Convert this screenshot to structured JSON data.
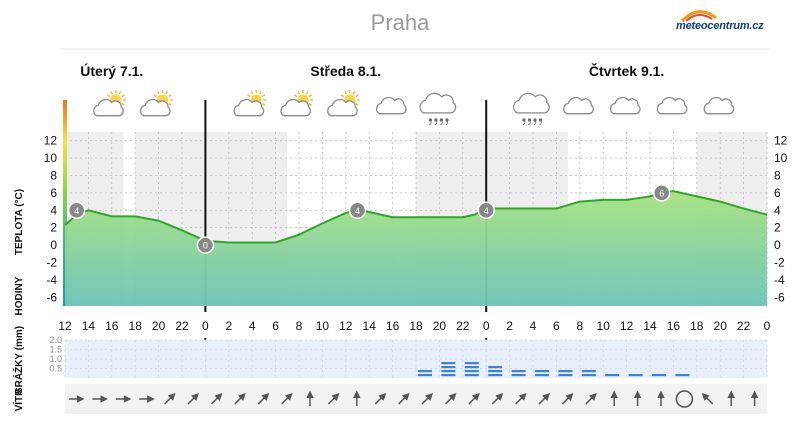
{
  "header": {
    "city": "Praha",
    "logo_text": "meteocentrum.cz"
  },
  "chart_data": {
    "type": "area",
    "days": [
      {
        "label": "Úterý 7.1.",
        "start_hour": 12
      },
      {
        "label": "Středa 8.1.",
        "start_hour": 24
      },
      {
        "label": "Čtvrtek 9.1.",
        "start_hour": 48
      }
    ],
    "x_ticks": [
      "12",
      "14",
      "16",
      "18",
      "20",
      "22",
      "0",
      "2",
      "4",
      "6",
      "8",
      "10",
      "12",
      "14",
      "16",
      "18",
      "20",
      "22",
      "0",
      "2",
      "4",
      "6",
      "8",
      "10",
      "12",
      "14",
      "16",
      "18",
      "20",
      "22",
      "0"
    ],
    "y_ticks": [
      12,
      10,
      8,
      6,
      4,
      2,
      0,
      -2,
      -4,
      -6
    ],
    "ylim": [
      -7,
      13
    ],
    "temp_axis_label": "TEPLOTA (°C)",
    "hours_axis_label": "HODINY",
    "temperature": {
      "hours": [
        12,
        13,
        14,
        16,
        18,
        20,
        22,
        24,
        26,
        28,
        30,
        32,
        34,
        36,
        37,
        38,
        40,
        42,
        44,
        46,
        47,
        48,
        50,
        52,
        54,
        56,
        58,
        60,
        62,
        63,
        64,
        66,
        68,
        70,
        72
      ],
      "values": [
        2.3,
        3.5,
        4,
        3.3,
        3.3,
        2.8,
        1.7,
        0.5,
        0.3,
        0.3,
        0.3,
        1.2,
        2.5,
        3.7,
        4,
        3.8,
        3.2,
        3.2,
        3.2,
        3.2,
        3.5,
        4.2,
        4.2,
        4.2,
        4.2,
        5,
        5.2,
        5.2,
        5.6,
        6,
        6.2,
        5.6,
        5,
        4.2,
        3.5
      ]
    },
    "temp_labels": [
      {
        "hour": 13,
        "value": 4,
        "text": "4"
      },
      {
        "hour": 24,
        "value": 0,
        "text": "0"
      },
      {
        "hour": 37,
        "value": 4,
        "text": "4"
      },
      {
        "hour": 48,
        "value": 4,
        "text": "4"
      },
      {
        "hour": 63,
        "value": 6,
        "text": "6"
      }
    ],
    "weather_icons": [
      {
        "hour": 16,
        "icon": "cloud-sun-icon"
      },
      {
        "hour": 20,
        "icon": "cloud-sun-icon"
      },
      {
        "hour": 28,
        "icon": "cloud-sun-icon"
      },
      {
        "hour": 32,
        "icon": "cloud-sun-icon"
      },
      {
        "hour": 36,
        "icon": "cloud-sun-icon"
      },
      {
        "hour": 40,
        "icon": "cloud-icon"
      },
      {
        "hour": 44,
        "icon": "rain-cloud-icon"
      },
      {
        "hour": 52,
        "icon": "rain-cloud-icon"
      },
      {
        "hour": 56,
        "icon": "cloud-icon"
      },
      {
        "hour": 60,
        "icon": "cloud-icon"
      },
      {
        "hour": 64,
        "icon": "cloud-icon"
      },
      {
        "hour": 68,
        "icon": "cloud-icon"
      }
    ],
    "precip_axis_label": "SRÁŽKY (mm)",
    "precip_ticks": [
      "2.0",
      "1.5",
      "1.0",
      "0.5"
    ],
    "precip_ylim": [
      0,
      2
    ],
    "precipitation": [
      {
        "hour": 42,
        "value": 0.5
      },
      {
        "hour": 44,
        "value": 1.0
      },
      {
        "hour": 46,
        "value": 1.0
      },
      {
        "hour": 48,
        "value": 0.7
      },
      {
        "hour": 50,
        "value": 0.5
      },
      {
        "hour": 52,
        "value": 0.5
      },
      {
        "hour": 54,
        "value": 0.5
      },
      {
        "hour": 56,
        "value": 0.5
      },
      {
        "hour": 58,
        "value": 0.3
      },
      {
        "hour": 60,
        "value": 0.3
      },
      {
        "hour": 62,
        "value": 0.3
      },
      {
        "hour": 64,
        "value": 0.3
      }
    ],
    "wind_axis_label": "VÍTR",
    "wind": [
      {
        "hour": 12,
        "dir": 90
      },
      {
        "hour": 14,
        "dir": 90
      },
      {
        "hour": 16,
        "dir": 90
      },
      {
        "hour": 18,
        "dir": 90
      },
      {
        "hour": 20,
        "dir": 45
      },
      {
        "hour": 22,
        "dir": 45
      },
      {
        "hour": 24,
        "dir": 45
      },
      {
        "hour": 26,
        "dir": 45
      },
      {
        "hour": 28,
        "dir": 45
      },
      {
        "hour": 30,
        "dir": 45
      },
      {
        "hour": 32,
        "dir": 0
      },
      {
        "hour": 34,
        "dir": 45
      },
      {
        "hour": 36,
        "dir": 0
      },
      {
        "hour": 38,
        "dir": 45
      },
      {
        "hour": 40,
        "dir": 45
      },
      {
        "hour": 42,
        "dir": 45
      },
      {
        "hour": 44,
        "dir": 45
      },
      {
        "hour": 46,
        "dir": 45
      },
      {
        "hour": 48,
        "dir": 45
      },
      {
        "hour": 50,
        "dir": 45
      },
      {
        "hour": 52,
        "dir": 45
      },
      {
        "hour": 54,
        "dir": 45
      },
      {
        "hour": 56,
        "dir": 45
      },
      {
        "hour": 58,
        "dir": 0
      },
      {
        "hour": 60,
        "dir": 0
      },
      {
        "hour": 62,
        "dir": 0
      },
      {
        "hour": 64,
        "dir": "calm"
      },
      {
        "hour": 66,
        "dir": -45
      },
      {
        "hour": 68,
        "dir": 0
      },
      {
        "hour": 70,
        "dir": 0
      }
    ],
    "colors": {
      "area_top": "#9fe07a",
      "area_bottom": "#6fc3b4",
      "line": "#2fa52a",
      "precip": "#3b82d8",
      "bubble": "#888888",
      "night": "#eeeeee"
    }
  }
}
